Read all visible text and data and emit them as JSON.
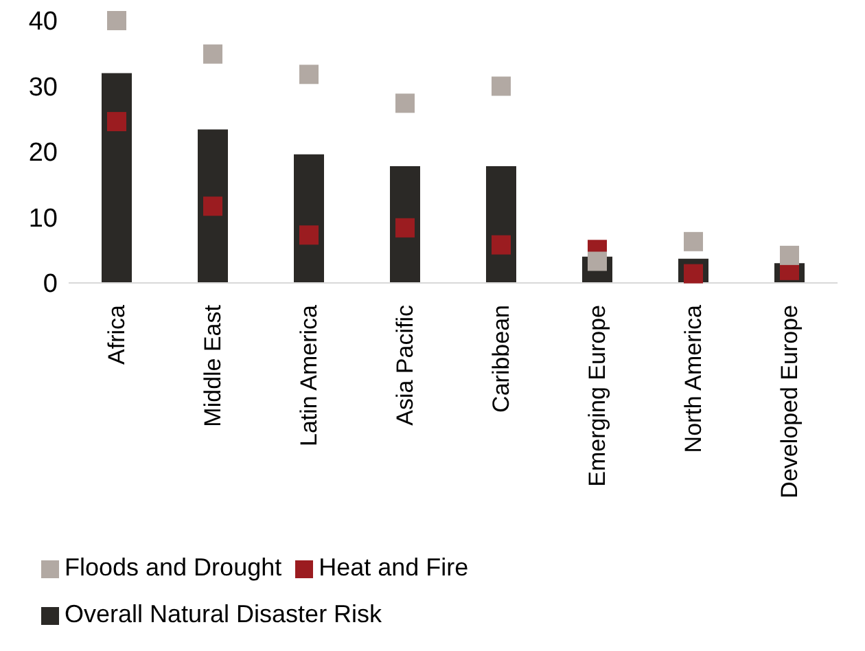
{
  "chart_data": {
    "type": "bar",
    "categories": [
      "Africa",
      "Middle East",
      "Latin America",
      "Asia Pacific",
      "Caribbean",
      "Emerging Europe",
      "North America",
      "Developed Europe"
    ],
    "series": [
      {
        "name": "Overall Natural Disaster Risk",
        "color": "#2b2926",
        "values": [
          32,
          23.4,
          19.6,
          17.8,
          17.8,
          4,
          3.7,
          3
        ]
      },
      {
        "name": "Heat and Fire",
        "type": "scatter",
        "color": "#9b1c20",
        "values": [
          24.6,
          11.7,
          7.3,
          8.4,
          5.8,
          5.1,
          1.4,
          1.9
        ]
      },
      {
        "name": "Floods and Drought",
        "type": "scatter",
        "color": "#b2a9a3",
        "values": [
          40,
          34.9,
          31.8,
          27.4,
          30,
          3.3,
          6.3,
          4.2
        ]
      }
    ],
    "ylim": [
      0,
      40
    ],
    "yticks": [
      0,
      10,
      20,
      30,
      40
    ],
    "grid": false,
    "legend": "bottom",
    "marker": "square"
  }
}
